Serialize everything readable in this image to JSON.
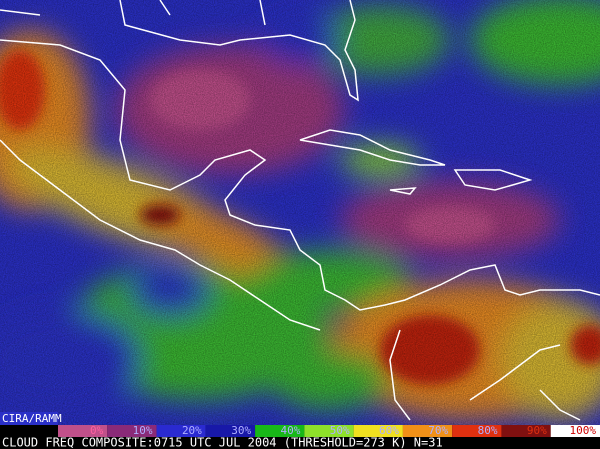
{
  "source_label": "CIRA/RAMM",
  "colorbar": {
    "labels": [
      "0%",
      "10%",
      "20%",
      "30%",
      "40%",
      "50%",
      "60%",
      "70%",
      "80%",
      "90%",
      "100%"
    ],
    "colors": [
      "#c0508a",
      "#8a2a78",
      "#2a2ad0",
      "#1818a8",
      "#18b818",
      "#8ee02a",
      "#f0e020",
      "#f09018",
      "#e03010",
      "#801010",
      "#ffffff"
    ]
  },
  "caption": "CLOUD FREQ COMPOSITE:0715 UTC JUL 2004 (THRESHOLD=273 K) N=31"
}
